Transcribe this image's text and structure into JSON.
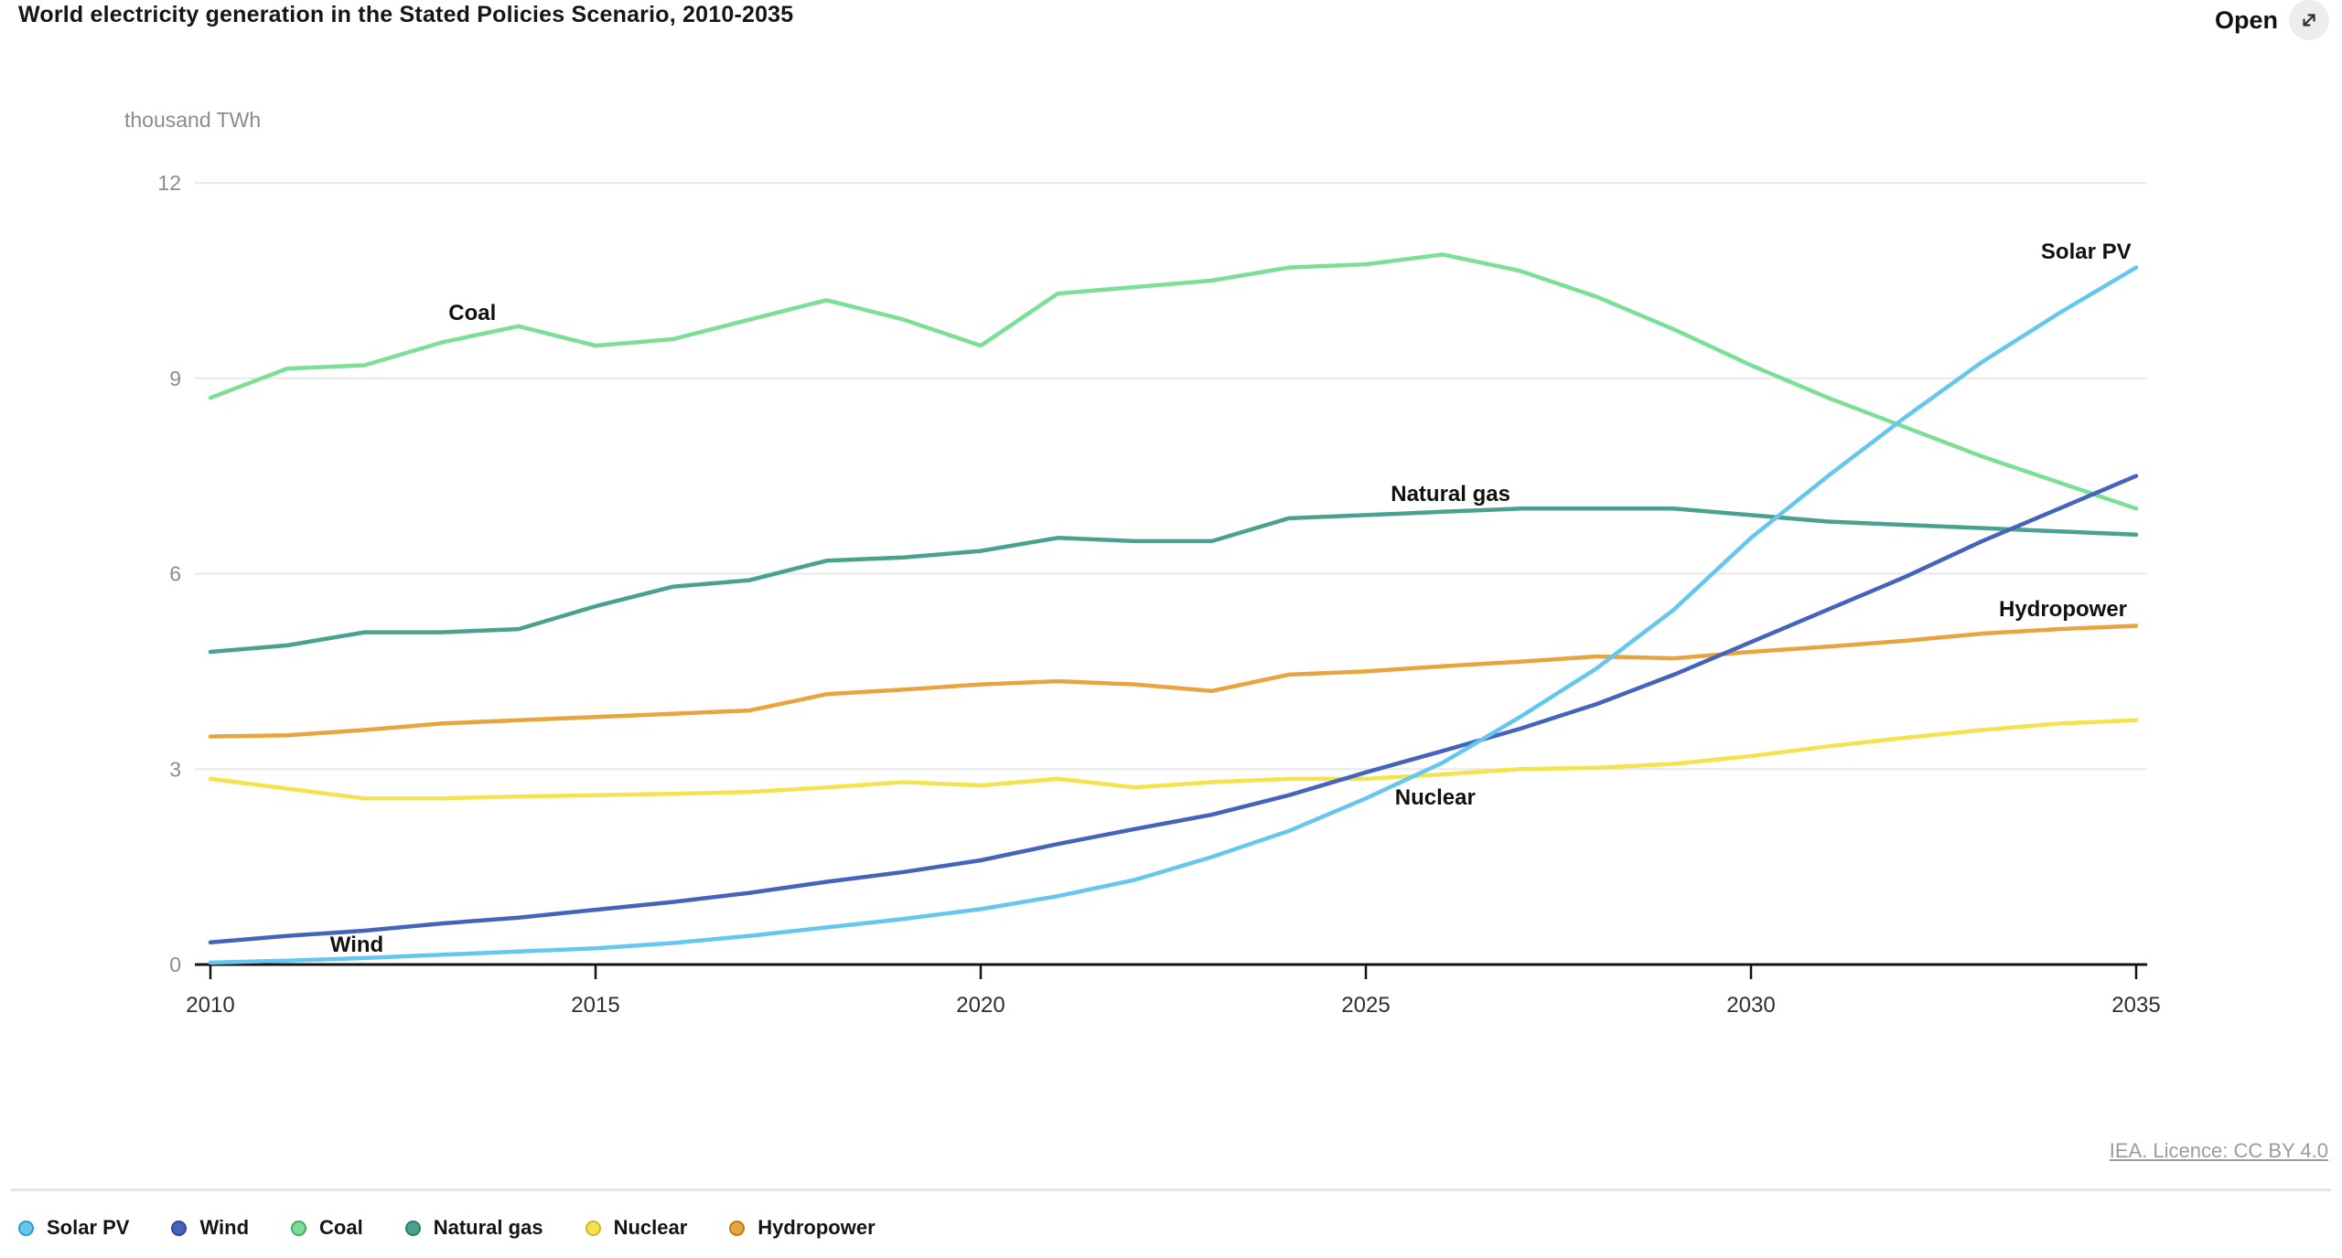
{
  "header": {
    "title": "World electricity generation in the Stated Policies Scenario, 2010-2035",
    "open_label": "Open"
  },
  "footer": {
    "licence": "IEA. Licence: CC BY 4.0"
  },
  "chart_data": {
    "type": "line",
    "title": "World electricity generation in the Stated Policies Scenario, 2010-2035",
    "ylabel": "thousand TWh",
    "xlabel": "",
    "xlim": [
      2010,
      2035
    ],
    "ylim": [
      0,
      12
    ],
    "x_ticks": [
      2010,
      2015,
      2020,
      2025,
      2030,
      2035
    ],
    "y_ticks": [
      0,
      3,
      6,
      9,
      12
    ],
    "grid": "horizontal",
    "legend_position": "bottom",
    "x": [
      2010,
      2011,
      2012,
      2013,
      2014,
      2015,
      2016,
      2017,
      2018,
      2019,
      2020,
      2021,
      2022,
      2023,
      2024,
      2025,
      2026,
      2027,
      2028,
      2029,
      2030,
      2031,
      2032,
      2033,
      2034,
      2035
    ],
    "series": [
      {
        "name": "Solar PV",
        "color": "#66c7ee",
        "legend_border": "#2f9cc9",
        "values": [
          0.03,
          0.06,
          0.1,
          0.15,
          0.2,
          0.25,
          0.33,
          0.44,
          0.57,
          0.7,
          0.85,
          1.05,
          1.3,
          1.65,
          2.05,
          2.55,
          3.1,
          3.8,
          4.55,
          5.45,
          6.55,
          7.5,
          8.4,
          9.25,
          10.0,
          10.7
        ],
        "label_anchor": {
          "year": 2034.35,
          "value": 10.93
        }
      },
      {
        "name": "Wind",
        "color": "#4464bc",
        "legend_border": "#2b4a9e",
        "values": [
          0.34,
          0.44,
          0.52,
          0.63,
          0.72,
          0.84,
          0.96,
          1.1,
          1.27,
          1.42,
          1.6,
          1.85,
          2.08,
          2.3,
          2.6,
          2.95,
          3.28,
          3.62,
          4.0,
          4.45,
          4.95,
          5.45,
          5.95,
          6.5,
          7.0,
          7.5
        ],
        "label_anchor": {
          "year": 2011.9,
          "value": 0.3
        }
      },
      {
        "name": "Coal",
        "color": "#7cdf97",
        "legend_border": "#3faf63",
        "values": [
          8.7,
          9.15,
          9.2,
          9.55,
          9.8,
          9.5,
          9.6,
          9.9,
          10.2,
          9.9,
          9.5,
          10.3,
          10.4,
          10.5,
          10.7,
          10.75,
          10.9,
          10.65,
          10.25,
          9.75,
          9.2,
          8.7,
          8.25,
          7.8,
          7.4,
          7.0
        ],
        "label_anchor": {
          "year": 2013.4,
          "value": 10.0
        }
      },
      {
        "name": "Natural gas",
        "color": "#48a28e",
        "legend_border": "#2a7c6c",
        "values": [
          4.8,
          4.9,
          5.1,
          5.1,
          5.15,
          5.5,
          5.8,
          5.9,
          6.2,
          6.25,
          6.35,
          6.55,
          6.5,
          6.5,
          6.85,
          6.9,
          6.95,
          7.0,
          7.0,
          7.0,
          6.9,
          6.8,
          6.75,
          6.7,
          6.65,
          6.6
        ],
        "label_anchor": {
          "year": 2026.1,
          "value": 7.22
        }
      },
      {
        "name": "Nuclear",
        "color": "#f3e44f",
        "legend_border": "#cdb92a",
        "values": [
          2.85,
          2.7,
          2.55,
          2.55,
          2.58,
          2.6,
          2.62,
          2.65,
          2.72,
          2.8,
          2.75,
          2.85,
          2.72,
          2.8,
          2.85,
          2.85,
          2.92,
          3.0,
          3.02,
          3.08,
          3.2,
          3.35,
          3.48,
          3.6,
          3.7,
          3.75
        ],
        "label_anchor": {
          "year": 2025.9,
          "value": 2.55
        }
      },
      {
        "name": "Hydropower",
        "color": "#e8a43e",
        "legend_border": "#bf7d12",
        "values": [
          3.5,
          3.52,
          3.6,
          3.7,
          3.75,
          3.8,
          3.85,
          3.9,
          4.15,
          4.22,
          4.3,
          4.35,
          4.3,
          4.2,
          4.45,
          4.5,
          4.58,
          4.65,
          4.73,
          4.7,
          4.8,
          4.88,
          4.97,
          5.08,
          5.15,
          5.2
        ],
        "label_anchor": {
          "year": 2034.05,
          "value": 5.45
        }
      }
    ]
  }
}
